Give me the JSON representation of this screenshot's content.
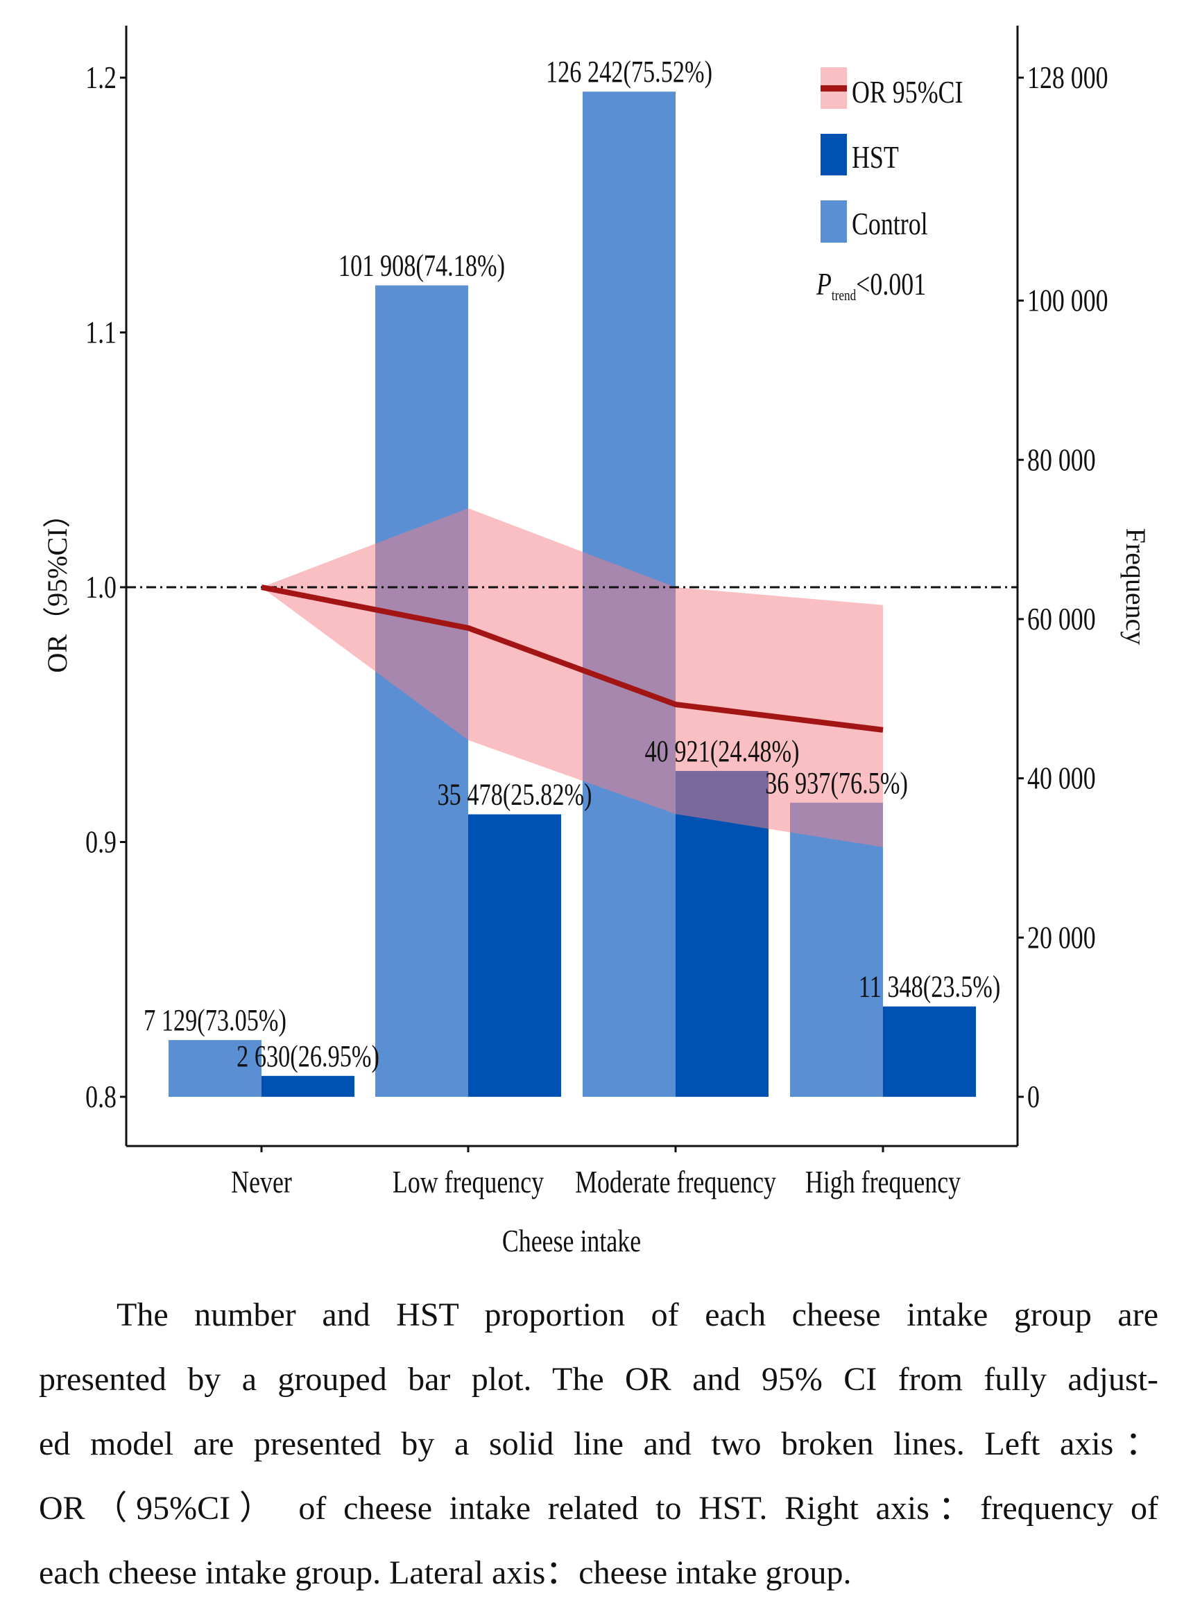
{
  "chart_data": {
    "type": "bar",
    "title": "",
    "xlabel": "Cheese intake",
    "ylabel": "OR（95%CI）",
    "y2label": "Frequency",
    "categories": [
      "Never",
      "Low frequency",
      "Moderate frequency",
      "High frequency"
    ],
    "ylim": [
      0.8,
      1.2
    ],
    "y2lim": [
      0,
      128000
    ],
    "yticks": [
      0.8,
      0.9,
      1.0,
      1.1,
      1.2
    ],
    "ytick_labels": [
      "0.8",
      "0.9",
      "1.0",
      "1.1",
      "1.2"
    ],
    "y2ticks": [
      0,
      20000,
      40000,
      60000,
      80000,
      100000,
      128000
    ],
    "y2tick_labels": [
      "0",
      "20 000",
      "40 000",
      "60 000",
      "80 000",
      "100 000",
      "128 000"
    ],
    "reference_line": 1.0,
    "series": [
      {
        "name": "Control",
        "type": "bar",
        "axis": "right",
        "color": "#5b8fd4",
        "values": [
          7129,
          101908,
          126242,
          36937
        ],
        "labels": [
          "7 129(73.05%)",
          "101 908(74.18%)",
          "126 242(75.52%)",
          "36 937(76.5%)"
        ]
      },
      {
        "name": "HST",
        "type": "bar",
        "axis": "right",
        "color": "#0052b2",
        "values": [
          2630,
          35478,
          40921,
          11348
        ],
        "labels": [
          "2 630(26.95%)",
          "35 478(25.82%)",
          "40 921(24.48%)",
          "11 348(23.5%)"
        ]
      },
      {
        "name": "OR 95%CI",
        "type": "line",
        "axis": "left",
        "color": "#a31414",
        "band_color": "#f47f86",
        "values": [
          1.0,
          0.984,
          0.954,
          0.944
        ],
        "lower": [
          1.0,
          0.94,
          0.911,
          0.898
        ],
        "upper": [
          1.0,
          1.031,
          1.0,
          0.993
        ]
      }
    ],
    "legend": {
      "position": "top-right",
      "entries": [
        "OR 95%CI",
        "HST",
        "Control"
      ]
    },
    "annotation": {
      "italic": "P",
      "subscript": "trend",
      "text": "<0.001"
    },
    "grid": false
  },
  "caption": {
    "lines": [
      "The number and HST proportion of each cheese intake group are",
      "presented by a grouped bar plot. The OR and 95% CI from fully adjust-",
      "ed model are presented by a solid line and two broken lines. Left axis：",
      "OR（95%CI） of cheese intake related to HST. Right axis：frequency of",
      "each cheese intake group. Lateral axis：cheese intake group."
    ]
  }
}
